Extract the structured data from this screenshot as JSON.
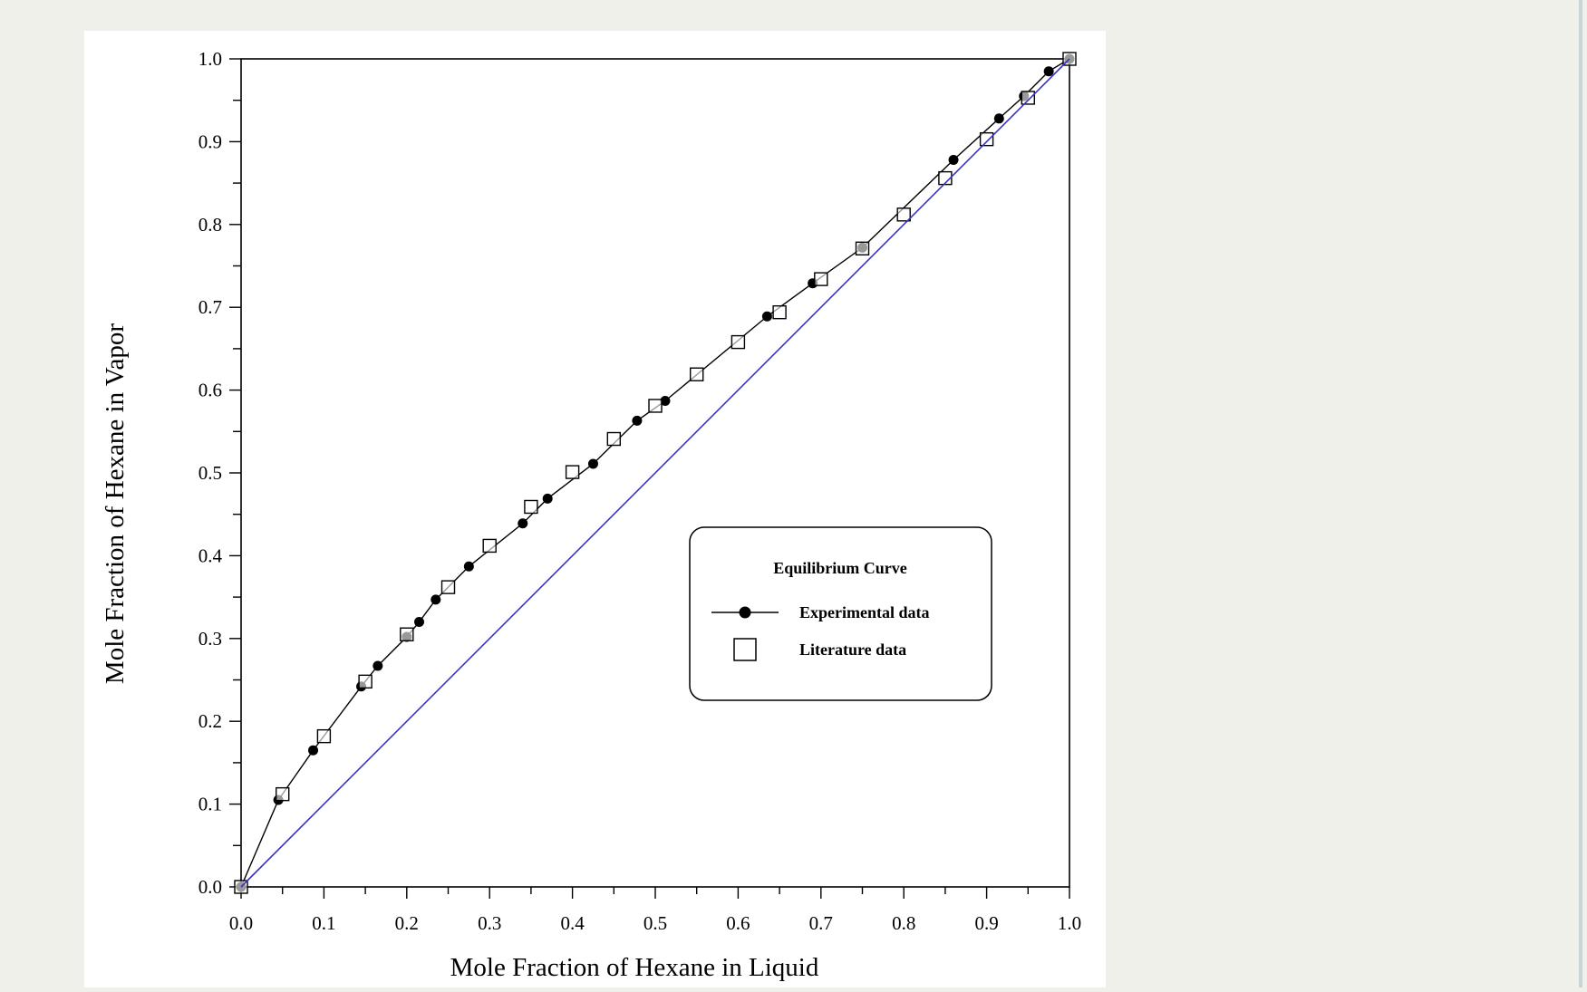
{
  "chart_data": {
    "type": "scatter",
    "title": "",
    "xlabel": "Mole Fraction of Hexane in Liquid",
    "ylabel": "Mole Fraction of Hexane in Vapor",
    "xlim": [
      0.0,
      1.0
    ],
    "ylim": [
      0.0,
      1.0
    ],
    "x_ticks": [
      "0.0",
      "0.1",
      "0.2",
      "0.3",
      "0.4",
      "0.5",
      "0.6",
      "0.7",
      "0.8",
      "0.9",
      "1.0"
    ],
    "y_ticks": [
      "0.0",
      "0.1",
      "0.2",
      "0.3",
      "0.4",
      "0.5",
      "0.6",
      "0.7",
      "0.8",
      "0.9",
      "1.0"
    ],
    "grid": false,
    "legend": {
      "title": "Equilibrium Curve",
      "placement": "lower-right",
      "entries": [
        "Experimental data",
        "Literature data"
      ]
    },
    "series": [
      {
        "name": "Experimental data",
        "marker": "filled-circle",
        "line": true,
        "color": "#000000",
        "x": [
          0.0,
          0.045,
          0.087,
          0.145,
          0.165,
          0.2,
          0.215,
          0.235,
          0.275,
          0.34,
          0.37,
          0.425,
          0.478,
          0.512,
          0.635,
          0.69,
          0.75,
          0.86,
          0.915,
          0.945,
          0.975,
          1.0
        ],
        "y": [
          0.0,
          0.105,
          0.165,
          0.242,
          0.267,
          0.302,
          0.32,
          0.347,
          0.387,
          0.439,
          0.469,
          0.511,
          0.563,
          0.587,
          0.689,
          0.729,
          0.772,
          0.878,
          0.928,
          0.955,
          0.985,
          1.0
        ]
      },
      {
        "name": "Literature data",
        "marker": "open-square",
        "line": false,
        "color": "#000000",
        "x": [
          0.0,
          0.05,
          0.1,
          0.15,
          0.2,
          0.25,
          0.3,
          0.35,
          0.4,
          0.45,
          0.5,
          0.55,
          0.6,
          0.65,
          0.7,
          0.75,
          0.8,
          0.85,
          0.9,
          0.95,
          1.0
        ],
        "y": [
          0.0,
          0.112,
          0.182,
          0.248,
          0.305,
          0.362,
          0.412,
          0.459,
          0.501,
          0.541,
          0.581,
          0.619,
          0.658,
          0.694,
          0.734,
          0.771,
          0.812,
          0.856,
          0.903,
          0.953,
          1.0
        ]
      },
      {
        "name": "",
        "marker": "none",
        "line": true,
        "color": "#3333cc",
        "x": [
          0.0,
          1.0
        ],
        "y": [
          0.0,
          1.0
        ]
      }
    ]
  }
}
